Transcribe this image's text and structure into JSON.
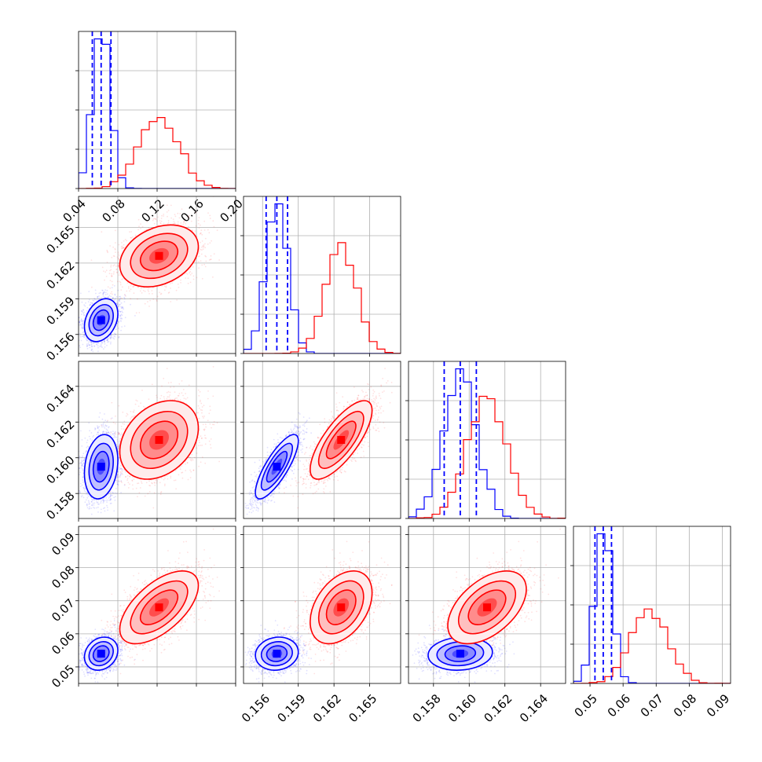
{
  "chart_data": {
    "type": "corner",
    "grid": true,
    "series": [
      {
        "color": "#0000ff",
        "means": [
          0.063,
          0.1572,
          0.1595,
          0.054
        ],
        "sds": [
          0.0085,
          0.0009,
          0.0009,
          0.0025
        ],
        "corr": [
          [
            1,
            0.3,
            0.2,
            0.2
          ],
          [
            0.3,
            1,
            0.8,
            0.1
          ],
          [
            0.2,
            0.8,
            1,
            0.1
          ],
          [
            0.2,
            0.1,
            0.1,
            1
          ]
        ],
        "quantile_lines": [
          [
            0.054,
            0.063,
            0.073
          ],
          [
            0.1563,
            0.1572,
            0.1581
          ],
          [
            0.1586,
            0.1595,
            0.1604
          ],
          [
            0.0515,
            0.054,
            0.0565
          ]
        ]
      },
      {
        "color": "#ff0000",
        "means": [
          0.122,
          0.1626,
          0.161,
          0.068
        ],
        "sds": [
          0.02,
          0.0013,
          0.0011,
          0.0055
        ],
        "corr": [
          [
            1,
            0.3,
            0.3,
            0.6
          ],
          [
            0.3,
            1,
            0.75,
            0.4
          ],
          [
            0.3,
            0.75,
            1,
            0.5
          ],
          [
            0.6,
            0.4,
            0.5,
            1
          ]
        ]
      }
    ],
    "panels": [
      {
        "row": 0,
        "col": 0,
        "kind": "hist",
        "xlim": [
          0.04,
          0.2
        ],
        "xticks": [
          0.04,
          0.08,
          0.12,
          0.16,
          0.2
        ],
        "xticklabels": [
          "0.04",
          "0.08",
          "0.12",
          "0.16",
          "0.20"
        ]
      },
      {
        "row": 1,
        "col": 0,
        "kind": "2d",
        "xlim": [
          0.04,
          0.2
        ],
        "ylim": [
          0.1544,
          0.1676
        ],
        "yticks": [
          0.156,
          0.159,
          0.162,
          0.165
        ],
        "yticklabels": [
          "0.156",
          "0.159",
          "0.162",
          "0.165"
        ]
      },
      {
        "row": 1,
        "col": 1,
        "kind": "hist",
        "xlim": [
          0.1544,
          0.1676
        ]
      },
      {
        "row": 2,
        "col": 0,
        "kind": "2d",
        "xlim": [
          0.04,
          0.2
        ],
        "ylim": [
          0.1566,
          0.1654
        ],
        "yticks": [
          0.158,
          0.16,
          0.162,
          0.164
        ],
        "yticklabels": [
          "0.158",
          "0.160",
          "0.162",
          "0.164"
        ]
      },
      {
        "row": 2,
        "col": 1,
        "kind": "2d",
        "xlim": [
          0.1544,
          0.1676
        ],
        "ylim": [
          0.1566,
          0.1654
        ]
      },
      {
        "row": 2,
        "col": 2,
        "kind": "hist",
        "xlim": [
          0.1566,
          0.1654
        ]
      },
      {
        "row": 3,
        "col": 0,
        "kind": "2d",
        "xlim": [
          0.04,
          0.2
        ],
        "ylim": [
          0.045,
          0.0925
        ],
        "yticks": [
          0.05,
          0.06,
          0.07,
          0.08,
          0.09
        ],
        "yticklabels": [
          "0.05",
          "0.06",
          "0.07",
          "0.08",
          "0.09"
        ]
      },
      {
        "row": 3,
        "col": 1,
        "kind": "2d",
        "xlim": [
          0.1544,
          0.1676
        ],
        "ylim": [
          0.045,
          0.0925
        ],
        "xticks": [
          0.156,
          0.159,
          0.162,
          0.165
        ],
        "xticklabels": [
          "0.156",
          "0.159",
          "0.162",
          "0.165"
        ]
      },
      {
        "row": 3,
        "col": 2,
        "kind": "2d",
        "xlim": [
          0.1566,
          0.1654
        ],
        "ylim": [
          0.045,
          0.0925
        ],
        "xticks": [
          0.158,
          0.16,
          0.162,
          0.164
        ],
        "xticklabels": [
          "0.158",
          "0.160",
          "0.162",
          "0.164"
        ]
      },
      {
        "row": 3,
        "col": 3,
        "kind": "hist",
        "xlim": [
          0.045,
          0.0925
        ],
        "xticks": [
          0.05,
          0.06,
          0.07,
          0.08,
          0.09
        ],
        "xticklabels": [
          "0.05",
          "0.06",
          "0.07",
          "0.08",
          "0.09"
        ]
      }
    ]
  }
}
